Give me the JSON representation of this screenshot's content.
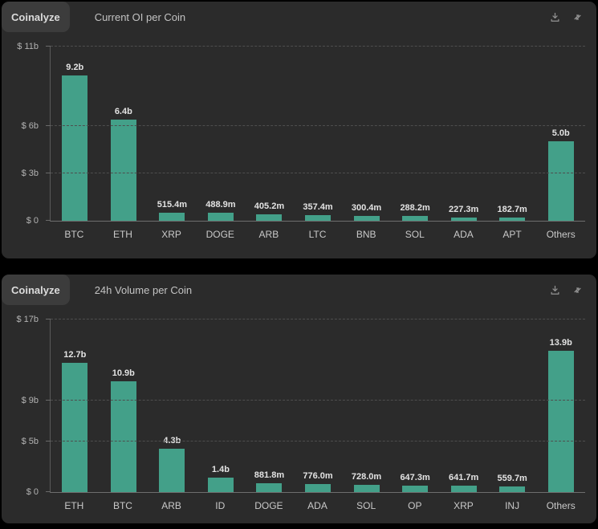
{
  "colors": {
    "background": "#000000",
    "panel_bg": "#2b2b2b",
    "tab_bg": "#3c3c3c",
    "bar": "#43a089",
    "gridline": "#4e4e4e"
  },
  "panels": [
    {
      "brand": "Coinalyze",
      "title": "Current OI per Coin",
      "icons": [
        "download-icon",
        "sync-arrows-icon"
      ]
    },
    {
      "brand": "Coinalyze",
      "title": "24h Volume per Coin",
      "icons": [
        "download-icon",
        "sync-arrows-icon"
      ]
    }
  ],
  "chart_data": [
    {
      "type": "bar",
      "title": "Current OI per Coin",
      "categories": [
        "BTC",
        "ETH",
        "XRP",
        "DOGE",
        "ARB",
        "LTC",
        "BNB",
        "SOL",
        "ADA",
        "APT",
        "Others"
      ],
      "values_billion": [
        9.2,
        6.4,
        0.5154,
        0.4889,
        0.4052,
        0.3574,
        0.3004,
        0.2882,
        0.2273,
        0.1827,
        5.0
      ],
      "value_labels": [
        "9.2b",
        "6.4b",
        "515.4m",
        "488.9m",
        "405.2m",
        "357.4m",
        "300.4m",
        "288.2m",
        "227.3m",
        "182.7m",
        "5.0b"
      ],
      "xlabel": "",
      "ylabel": "USD",
      "ylim": [
        0,
        11
      ],
      "y_ticks": [
        {
          "label": "$ 11b",
          "value": 11
        },
        {
          "label": "$ 6b",
          "value": 6
        },
        {
          "label": "$ 3b",
          "value": 3
        },
        {
          "label": "$ 0",
          "value": 0
        }
      ],
      "grid": "horizontal-dashed-at-ticks",
      "legend": "none"
    },
    {
      "type": "bar",
      "title": "24h Volume per Coin",
      "categories": [
        "ETH",
        "BTC",
        "ARB",
        "ID",
        "DOGE",
        "ADA",
        "SOL",
        "OP",
        "XRP",
        "INJ",
        "Others"
      ],
      "values_billion": [
        12.7,
        10.9,
        4.3,
        1.4,
        0.8818,
        0.776,
        0.728,
        0.6473,
        0.6417,
        0.5597,
        13.9
      ],
      "value_labels": [
        "12.7b",
        "10.9b",
        "4.3b",
        "1.4b",
        "881.8m",
        "776.0m",
        "728.0m",
        "647.3m",
        "641.7m",
        "559.7m",
        "13.9b"
      ],
      "xlabel": "",
      "ylabel": "USD",
      "ylim": [
        0,
        17
      ],
      "y_ticks": [
        {
          "label": "$ 17b",
          "value": 17
        },
        {
          "label": "$ 9b",
          "value": 9
        },
        {
          "label": "$ 5b",
          "value": 5
        },
        {
          "label": "$ 0",
          "value": 0
        }
      ],
      "grid": "horizontal-dashed-at-ticks",
      "legend": "none"
    }
  ]
}
